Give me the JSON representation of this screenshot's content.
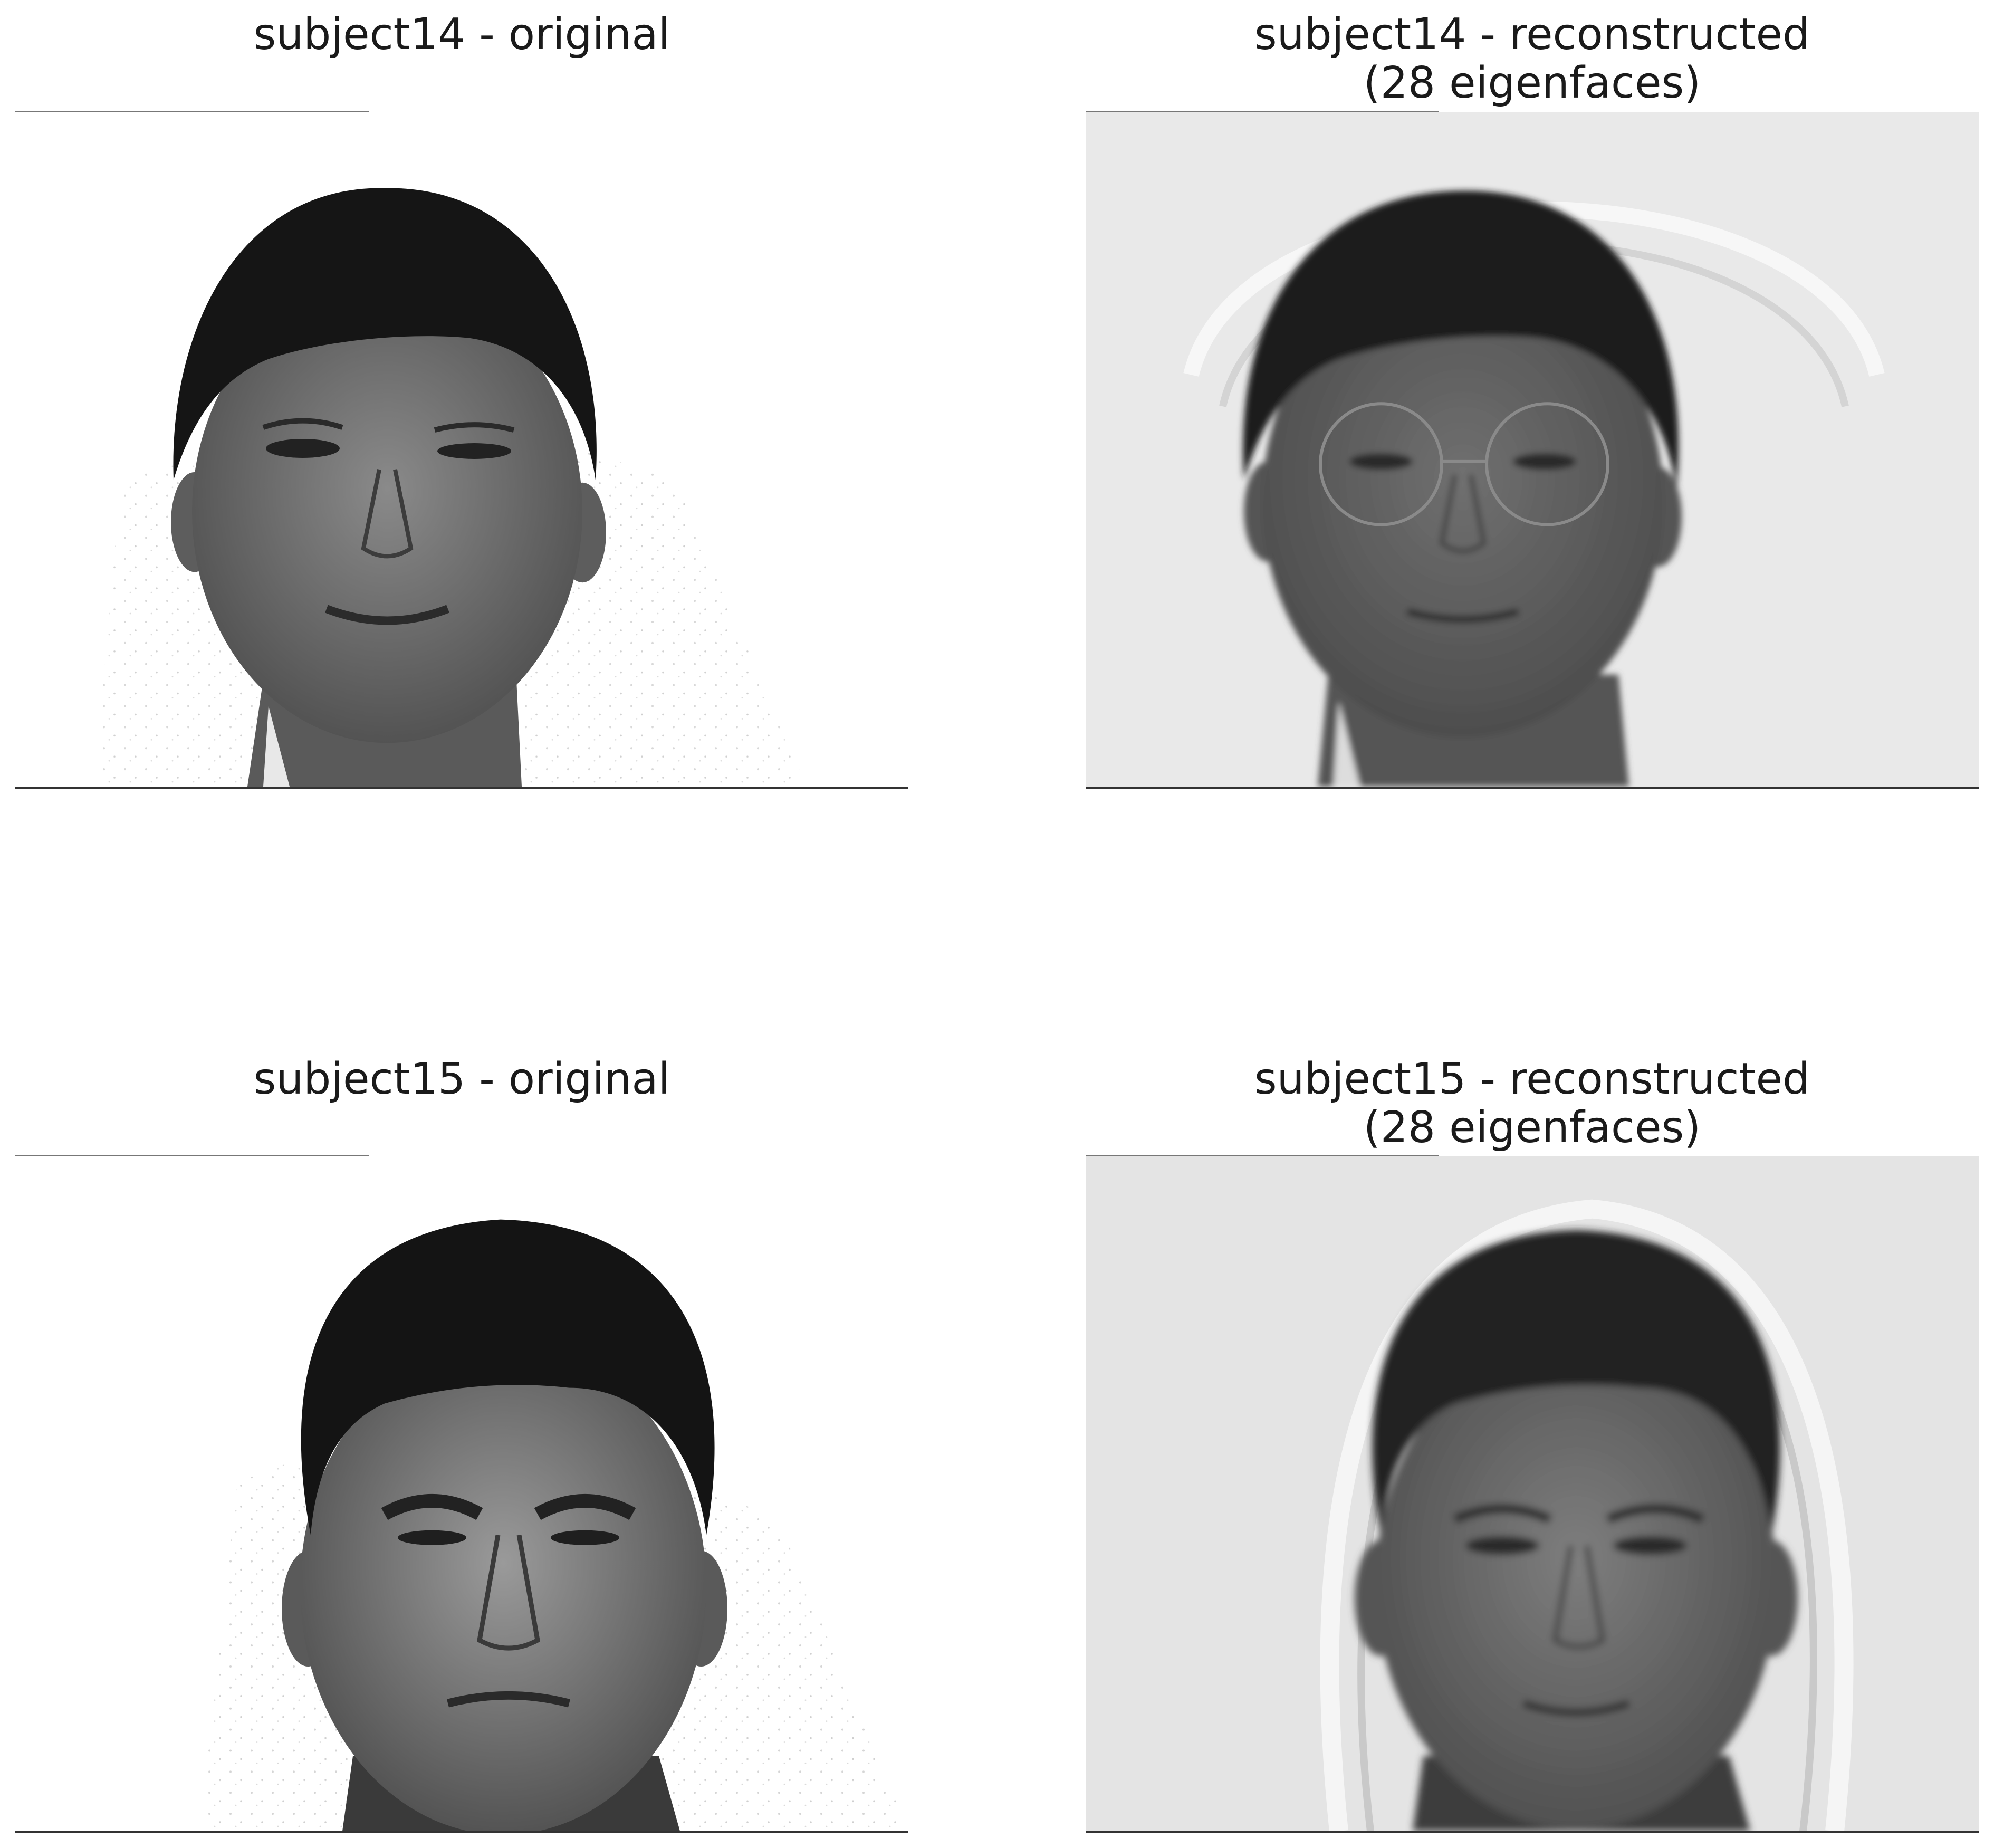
{
  "panels": [
    {
      "title_line1": "subject14 - original",
      "title_line2": "",
      "kind": "original",
      "background": "#ffffff"
    },
    {
      "title_line1": "subject14 - reconstructed",
      "title_line2": "(28 eigenfaces)",
      "kind": "reconstructed",
      "background": "#e9e9e9"
    },
    {
      "title_line1": "subject15 - original",
      "title_line2": "",
      "kind": "original",
      "background": "#ffffff"
    },
    {
      "title_line1": "subject15 - reconstructed",
      "title_line2": "(28 eigenfaces)",
      "kind": "reconstructed",
      "background": "#e4e4e4"
    }
  ],
  "colors": {
    "hair": "#151515",
    "skin_original": "#6e6e6e",
    "skin_reconstructed": "#5c5c5c",
    "axis_line": "#333333"
  }
}
